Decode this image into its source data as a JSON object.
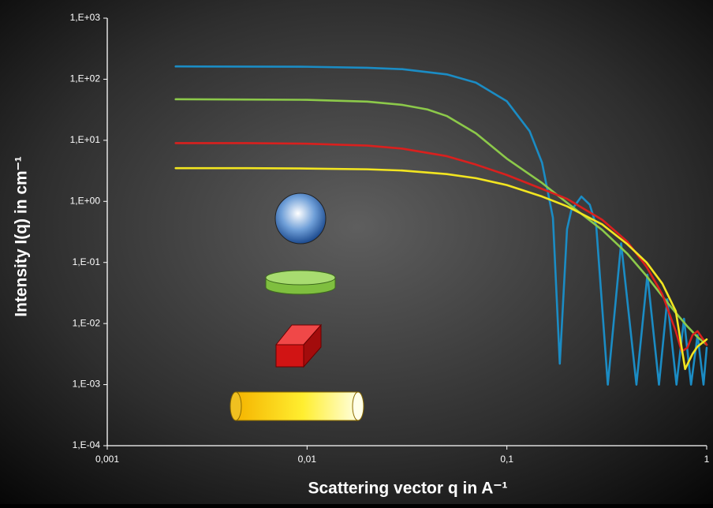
{
  "chart_data": {
    "type": "line",
    "x_label": "Scattering vector q in A⁻¹",
    "y_label": "Intensity I(q) in cm⁻¹",
    "xscale": "log",
    "yscale": "log",
    "xlim": [
      0.001,
      1
    ],
    "ylim": [
      0.0001,
      1000
    ],
    "xticks": [
      {
        "value": 0.001,
        "label": "0,001"
      },
      {
        "value": 0.01,
        "label": "0,01"
      },
      {
        "value": 0.1,
        "label": "0,1"
      },
      1
    ],
    "yticks": [
      {
        "value": 0.0001,
        "label": "1,E-04"
      },
      {
        "value": 0.001,
        "label": "1,E-03"
      },
      {
        "value": 0.01,
        "label": "1,E-02"
      },
      {
        "value": 0.1,
        "label": "1,E-01"
      },
      {
        "value": 1,
        "label": "1,E+00"
      },
      {
        "value": 10,
        "label": "1,E+01"
      },
      {
        "value": 100,
        "label": "1,E+02"
      },
      {
        "value": 1000,
        "label": "1,E+03"
      }
    ],
    "series": [
      {
        "color": "#1b8cc4",
        "x": [
          0.0022,
          0.01,
          0.02,
          0.03,
          0.05,
          0.07,
          0.1,
          0.13,
          0.15,
          0.17,
          0.184,
          0.2,
          0.21,
          0.236,
          0.26,
          0.28,
          0.32,
          0.373,
          0.445,
          0.505,
          0.577,
          0.635,
          0.706,
          0.77,
          0.835,
          0.9,
          0.964,
          1
        ],
        "values": [
          162,
          160,
          154,
          146,
          120,
          88,
          43.5,
          14.1,
          4.28,
          0.54,
          0.0022,
          0.35,
          0.71,
          1.2,
          0.88,
          0.4,
          0.001,
          0.206,
          0.001,
          0.063,
          0.001,
          0.025,
          0.001,
          0.012,
          0.001,
          0.0065,
          0.001,
          0.004
        ]
      },
      {
        "color": "#8cc94a",
        "x": [
          0.0022,
          0.005,
          0.01,
          0.02,
          0.03,
          0.04,
          0.05,
          0.07,
          0.1,
          0.15,
          0.2,
          0.3,
          0.4,
          0.5,
          0.6,
          0.7,
          0.8,
          0.9,
          1
        ],
        "values": [
          47,
          46.5,
          46,
          43,
          38,
          32,
          25,
          13,
          5,
          2,
          0.95,
          0.34,
          0.14,
          0.06,
          0.028,
          0.015,
          0.009,
          0.006,
          0.0045
        ]
      },
      {
        "color": "#d9201e",
        "x": [
          0.0022,
          0.005,
          0.01,
          0.02,
          0.03,
          0.05,
          0.07,
          0.1,
          0.15,
          0.2,
          0.3,
          0.4,
          0.5,
          0.6,
          0.7,
          0.75,
          0.8,
          0.85,
          0.9,
          1
        ],
        "values": [
          9,
          9,
          8.8,
          8.2,
          7.3,
          5.5,
          4,
          2.7,
          1.6,
          1.1,
          0.5,
          0.22,
          0.085,
          0.03,
          0.0075,
          0.0035,
          0.004,
          0.0065,
          0.0075,
          0.0045
        ]
      },
      {
        "color": "#f2e520",
        "x": [
          0.0022,
          0.005,
          0.01,
          0.02,
          0.03,
          0.05,
          0.07,
          0.1,
          0.15,
          0.2,
          0.3,
          0.4,
          0.5,
          0.6,
          0.7,
          0.78,
          0.85,
          0.9,
          1
        ],
        "values": [
          3.5,
          3.5,
          3.45,
          3.35,
          3.2,
          2.8,
          2.4,
          1.85,
          1.2,
          0.83,
          0.42,
          0.2,
          0.1,
          0.045,
          0.016,
          0.0018,
          0.0032,
          0.0042,
          0.0055
        ]
      }
    ]
  }
}
